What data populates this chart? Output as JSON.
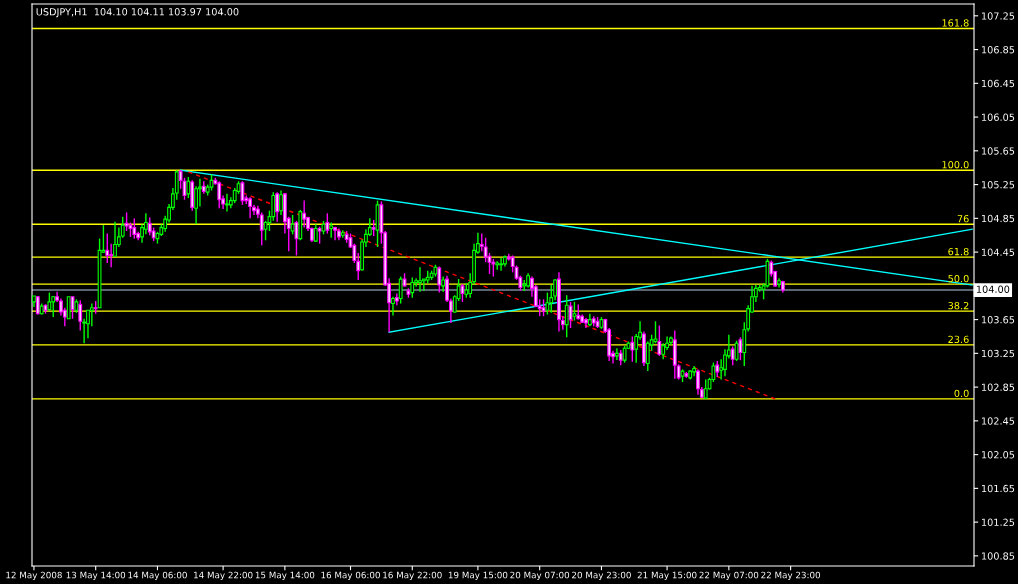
{
  "chart_data": {
    "type": "candlestick",
    "title": "USDJPY,H1  104.10 104.11 103.97 104.00",
    "categories": [
      "12 May 2008",
      null,
      null,
      null,
      null,
      null,
      null,
      null,
      null,
      null,
      null,
      null,
      null,
      null,
      null,
      null,
      "13 May 14:00",
      null,
      null,
      null,
      null,
      null,
      null,
      null,
      null,
      null,
      null,
      null,
      null,
      null,
      null,
      null,
      "14 May 06:00",
      null,
      null,
      null,
      null,
      null,
      null,
      null,
      null,
      null,
      null,
      null,
      null,
      null,
      null,
      null,
      null,
      "14 May 22:00",
      null,
      null,
      null,
      null,
      null,
      null,
      null,
      null,
      null,
      null,
      null,
      null,
      null,
      null,
      null,
      "15 May 14:00",
      null,
      null,
      null,
      null,
      null,
      null,
      null,
      null,
      null,
      null,
      null,
      null,
      null,
      null,
      null,
      null,
      "16 May 06:00",
      null,
      null,
      null,
      null,
      null,
      null,
      null,
      null,
      null,
      null,
      null,
      null,
      null,
      null,
      null,
      "16 May 22:00",
      null,
      null,
      null,
      null,
      null,
      null,
      null,
      null,
      null,
      null,
      null,
      null,
      null,
      null,
      null,
      null,
      "19 May 15:00",
      null,
      null,
      null,
      null,
      null,
      null,
      null,
      null,
      null,
      null,
      null,
      null,
      null,
      null,
      null,
      "20 May 07:00",
      null,
      null,
      null,
      null,
      null,
      null,
      null,
      null,
      null,
      null,
      null,
      null,
      null,
      null,
      null,
      "20 May 23:00",
      null,
      null,
      null,
      null,
      null,
      null,
      null,
      null,
      null,
      null,
      null,
      null,
      null,
      null,
      null,
      null,
      "21 May 15:00",
      null,
      null,
      null,
      null,
      null,
      null,
      null,
      null,
      null,
      null,
      null,
      null,
      null,
      null,
      null,
      "22 May 07:00",
      null,
      null,
      null,
      null,
      null,
      null,
      null,
      null,
      null,
      null,
      null,
      null,
      null,
      null,
      null,
      "22 May 23:00",
      null,
      null,
      null,
      null,
      null,
      null,
      null,
      null,
      null,
      null,
      null,
      null,
      null,
      null,
      null,
      null,
      null,
      null,
      null,
      null,
      null,
      null,
      null,
      null,
      null,
      null,
      null,
      null,
      null,
      null,
      null,
      null,
      null,
      null,
      null,
      null,
      null,
      null,
      null,
      null,
      null,
      null,
      null,
      null,
      null,
      null,
      null
    ],
    "ohlc": [
      [
        103.86,
        103.93,
        103.8,
        103.93
      ],
      [
        103.92,
        103.93,
        103.71,
        103.72
      ],
      [
        103.72,
        103.84,
        103.71,
        103.81
      ],
      [
        103.82,
        103.83,
        103.72,
        103.76
      ],
      [
        103.77,
        103.97,
        103.75,
        103.86
      ],
      [
        103.86,
        103.93,
        103.68,
        103.92
      ],
      [
        103.92,
        103.98,
        103.86,
        103.88
      ],
      [
        103.87,
        103.9,
        103.7,
        103.74
      ],
      [
        103.76,
        103.79,
        103.57,
        103.68
      ],
      [
        103.66,
        103.92,
        103.66,
        103.92
      ],
      [
        103.92,
        103.92,
        103.66,
        103.77
      ],
      [
        103.76,
        103.89,
        103.73,
        103.86
      ],
      [
        103.83,
        103.88,
        103.52,
        103.63
      ],
      [
        103.61,
        103.66,
        103.37,
        103.62
      ],
      [
        103.6,
        103.76,
        103.43,
        103.76
      ],
      [
        103.76,
        103.84,
        103.57,
        103.79
      ],
      [
        103.79,
        103.87,
        103.72,
        103.78
      ],
      [
        103.79,
        104.61,
        103.79,
        104.47
      ],
      [
        104.45,
        104.77,
        104.44,
        104.47
      ],
      [
        104.47,
        104.67,
        104.32,
        104.41
      ],
      [
        104.42,
        104.55,
        104.27,
        104.41
      ],
      [
        104.4,
        104.81,
        104.4,
        104.54
      ],
      [
        104.54,
        104.74,
        104.51,
        104.63
      ],
      [
        104.64,
        104.87,
        104.62,
        104.77
      ],
      [
        104.79,
        104.92,
        104.7,
        104.76
      ],
      [
        104.77,
        104.8,
        104.63,
        104.73
      ],
      [
        104.74,
        104.85,
        104.61,
        104.66
      ],
      [
        104.67,
        104.69,
        104.59,
        104.62
      ],
      [
        104.63,
        104.78,
        104.56,
        104.74
      ],
      [
        104.72,
        104.91,
        104.66,
        104.8
      ],
      [
        104.79,
        104.86,
        104.65,
        104.69
      ],
      [
        104.7,
        104.74,
        104.58,
        104.62
      ],
      [
        104.61,
        104.69,
        104.55,
        104.67
      ],
      [
        104.66,
        104.78,
        104.64,
        104.74
      ],
      [
        104.73,
        104.88,
        104.69,
        104.84
      ],
      [
        104.83,
        105.02,
        104.8,
        104.98
      ],
      [
        104.98,
        105.21,
        104.95,
        105.14
      ],
      [
        105.15,
        105.42,
        105.07,
        105.4
      ],
      [
        105.41,
        105.42,
        105.2,
        105.3
      ],
      [
        105.29,
        105.33,
        105.07,
        105.12
      ],
      [
        105.14,
        105.34,
        105.09,
        105.29
      ],
      [
        105.28,
        105.3,
        104.94,
        104.98
      ],
      [
        104.97,
        105.23,
        104.78,
        105.2
      ],
      [
        105.2,
        105.32,
        104.99,
        105.22
      ],
      [
        105.23,
        105.29,
        105.14,
        105.17
      ],
      [
        105.16,
        105.25,
        105.12,
        105.22
      ],
      [
        105.22,
        105.37,
        105.18,
        105.3
      ],
      [
        105.3,
        105.33,
        105.25,
        105.26
      ],
      [
        105.27,
        105.29,
        104.97,
        105.07
      ],
      [
        105.08,
        105.12,
        104.96,
        105.02
      ],
      [
        105.01,
        105.14,
        104.93,
        105.02
      ],
      [
        105.01,
        105.1,
        104.97,
        105.06
      ],
      [
        105.06,
        105.21,
        105.03,
        105.18
      ],
      [
        105.17,
        105.29,
        105.14,
        105.26
      ],
      [
        105.27,
        105.29,
        105.01,
        105.06
      ],
      [
        105.09,
        105.12,
        105.02,
        105.06
      ],
      [
        105.08,
        105.1,
        104.85,
        104.99
      ],
      [
        104.98,
        105.01,
        104.89,
        104.94
      ],
      [
        104.96,
        105.0,
        104.85,
        104.9
      ],
      [
        104.89,
        104.92,
        104.53,
        104.71
      ],
      [
        104.72,
        104.82,
        104.59,
        104.8
      ],
      [
        104.8,
        104.94,
        104.7,
        104.87
      ],
      [
        104.87,
        105.16,
        104.82,
        105.12
      ],
      [
        105.14,
        105.16,
        104.81,
        104.93
      ],
      [
        104.94,
        105.18,
        104.89,
        105.13
      ],
      [
        105.14,
        105.15,
        104.67,
        104.81
      ],
      [
        104.85,
        104.87,
        104.46,
        104.73
      ],
      [
        104.7,
        104.89,
        104.66,
        104.78
      ],
      [
        104.8,
        104.82,
        104.41,
        104.61
      ],
      [
        104.61,
        104.95,
        104.59,
        104.93
      ],
      [
        104.91,
        105.06,
        104.74,
        104.84
      ],
      [
        104.86,
        104.87,
        104.7,
        104.73
      ],
      [
        104.73,
        104.74,
        104.57,
        104.59
      ],
      [
        104.58,
        104.78,
        104.57,
        104.73
      ],
      [
        104.73,
        104.75,
        104.55,
        104.7
      ],
      [
        104.7,
        104.82,
        104.66,
        104.78
      ],
      [
        104.8,
        104.91,
        104.67,
        104.71
      ],
      [
        104.73,
        104.8,
        104.62,
        104.76
      ],
      [
        104.74,
        104.75,
        104.59,
        104.71
      ],
      [
        104.7,
        104.73,
        104.59,
        104.63
      ],
      [
        104.65,
        104.71,
        104.62,
        104.68
      ],
      [
        104.66,
        104.7,
        104.56,
        104.6
      ],
      [
        104.62,
        104.67,
        104.5,
        104.51
      ],
      [
        104.53,
        104.55,
        104.32,
        104.35
      ],
      [
        104.34,
        104.44,
        104.12,
        104.23
      ],
      [
        104.24,
        104.6,
        104.23,
        104.57
      ],
      [
        104.57,
        104.72,
        104.51,
        104.66
      ],
      [
        104.66,
        104.85,
        104.64,
        104.74
      ],
      [
        104.74,
        104.83,
        104.64,
        104.72
      ],
      [
        104.71,
        105.06,
        104.51,
        105.01
      ],
      [
        105.01,
        105.05,
        104.55,
        104.68
      ],
      [
        104.68,
        104.7,
        104.05,
        104.06
      ],
      [
        104.08,
        104.14,
        103.5,
        103.85
      ],
      [
        103.84,
        103.92,
        103.7,
        103.9
      ],
      [
        103.91,
        103.96,
        103.82,
        103.87
      ],
      [
        103.9,
        104.16,
        103.84,
        104.13
      ],
      [
        104.13,
        104.2,
        104.04,
        104.05
      ],
      [
        103.99,
        104.02,
        103.91,
        103.95
      ],
      [
        103.97,
        104.15,
        103.91,
        104.09
      ],
      [
        104.09,
        104.14,
        104.04,
        104.11
      ],
      [
        104.09,
        104.27,
        103.98,
        104.11
      ],
      [
        104.11,
        104.13,
        103.99,
        104.13
      ],
      [
        104.12,
        104.23,
        104.08,
        104.15
      ],
      [
        104.15,
        104.23,
        104.12,
        104.2
      ],
      [
        104.19,
        104.3,
        104.16,
        104.27
      ],
      [
        104.26,
        104.28,
        103.97,
        104.06
      ],
      [
        104.05,
        104.16,
        103.98,
        104.12
      ],
      [
        104.13,
        104.17,
        103.86,
        103.88
      ],
      [
        103.87,
        103.9,
        103.61,
        103.75
      ],
      [
        103.74,
        103.94,
        103.73,
        103.92
      ],
      [
        103.9,
        104.13,
        103.87,
        104.05
      ],
      [
        104.05,
        104.07,
        103.86,
        103.96
      ],
      [
        103.95,
        104.08,
        103.91,
        104.0
      ],
      [
        103.96,
        104.2,
        103.91,
        104.09
      ],
      [
        104.1,
        104.55,
        104.07,
        104.47
      ],
      [
        104.45,
        104.68,
        104.43,
        104.55
      ],
      [
        104.54,
        104.67,
        104.46,
        104.52
      ],
      [
        104.51,
        104.62,
        104.33,
        104.39
      ],
      [
        104.4,
        104.44,
        104.19,
        104.33
      ],
      [
        104.33,
        104.37,
        104.16,
        104.31
      ],
      [
        104.3,
        104.34,
        104.24,
        104.32
      ],
      [
        104.3,
        104.38,
        104.23,
        104.31
      ],
      [
        104.31,
        104.41,
        104.28,
        104.39
      ],
      [
        104.39,
        104.43,
        104.35,
        104.37
      ],
      [
        104.39,
        104.41,
        104.21,
        104.28
      ],
      [
        104.27,
        104.29,
        104.12,
        104.14
      ],
      [
        104.15,
        104.17,
        103.99,
        104.03
      ],
      [
        104.05,
        104.12,
        103.99,
        104.07
      ],
      [
        104.05,
        104.2,
        104.03,
        104.17
      ],
      [
        104.14,
        104.16,
        103.92,
        104.02
      ],
      [
        104.04,
        104.06,
        103.8,
        103.81
      ],
      [
        103.81,
        103.89,
        103.69,
        103.78
      ],
      [
        103.79,
        103.89,
        103.69,
        103.75
      ],
      [
        103.76,
        103.97,
        103.71,
        103.85
      ],
      [
        103.85,
        104.06,
        103.73,
        103.91
      ],
      [
        103.93,
        104.13,
        103.88,
        104.12
      ],
      [
        104.13,
        104.21,
        103.51,
        103.65
      ],
      [
        103.64,
        103.69,
        103.53,
        103.59
      ],
      [
        103.59,
        103.94,
        103.44,
        103.82
      ],
      [
        103.81,
        103.86,
        103.55,
        103.65
      ],
      [
        103.69,
        103.86,
        103.64,
        103.72
      ],
      [
        103.7,
        103.83,
        103.65,
        103.66
      ],
      [
        103.69,
        103.71,
        103.61,
        103.62
      ],
      [
        103.65,
        103.67,
        103.55,
        103.61
      ],
      [
        103.59,
        103.72,
        103.57,
        103.65
      ],
      [
        103.66,
        103.69,
        103.57,
        103.61
      ],
      [
        103.63,
        103.68,
        103.55,
        103.57
      ],
      [
        103.56,
        103.68,
        103.54,
        103.65
      ],
      [
        103.65,
        103.66,
        103.49,
        103.51
      ],
      [
        103.53,
        103.55,
        103.16,
        103.22
      ],
      [
        103.25,
        103.28,
        103.13,
        103.21
      ],
      [
        103.22,
        103.31,
        103.17,
        103.25
      ],
      [
        103.25,
        103.29,
        103.11,
        103.17
      ],
      [
        103.17,
        103.34,
        103.14,
        103.31
      ],
      [
        103.31,
        103.39,
        103.3,
        103.37
      ],
      [
        103.38,
        103.45,
        103.15,
        103.29
      ],
      [
        103.3,
        103.48,
        103.14,
        103.45
      ],
      [
        103.44,
        103.63,
        103.41,
        103.5
      ],
      [
        103.48,
        103.51,
        103.1,
        103.14
      ],
      [
        103.13,
        103.39,
        103.04,
        103.37
      ],
      [
        103.35,
        103.47,
        103.28,
        103.41
      ],
      [
        103.39,
        103.63,
        103.37,
        103.42
      ],
      [
        103.39,
        103.58,
        103.22,
        103.24
      ],
      [
        103.24,
        103.37,
        103.18,
        103.34
      ],
      [
        103.32,
        103.45,
        103.29,
        103.37
      ],
      [
        103.38,
        103.45,
        103.35,
        103.43
      ],
      [
        103.41,
        103.52,
        102.95,
        103.11
      ],
      [
        103.1,
        103.12,
        102.94,
        102.96
      ],
      [
        102.98,
        103.06,
        102.91,
        103.04
      ],
      [
        103.01,
        103.03,
        102.96,
        102.98
      ],
      [
        102.96,
        103.05,
        102.94,
        103.04
      ],
      [
        103.03,
        103.1,
        102.98,
        103.07
      ],
      [
        103.04,
        103.06,
        102.76,
        102.83
      ],
      [
        102.82,
        102.85,
        102.72,
        102.73
      ],
      [
        102.72,
        102.94,
        102.71,
        102.83
      ],
      [
        102.83,
        102.96,
        102.82,
        102.94
      ],
      [
        102.94,
        103.14,
        102.91,
        103.1
      ],
      [
        103.11,
        103.16,
        102.97,
        103.03
      ],
      [
        103.05,
        103.18,
        102.94,
        103.08
      ],
      [
        103.06,
        103.3,
        102.98,
        103.23
      ],
      [
        103.22,
        103.47,
        103.19,
        103.29
      ],
      [
        103.3,
        103.33,
        103.11,
        103.18
      ],
      [
        103.18,
        103.4,
        103.16,
        103.37
      ],
      [
        103.41,
        103.44,
        103.17,
        103.26
      ],
      [
        103.26,
        103.62,
        103.1,
        103.53
      ],
      [
        103.54,
        103.82,
        103.51,
        103.78
      ],
      [
        103.74,
        104.05,
        103.73,
        103.92
      ],
      [
        103.92,
        104.06,
        103.86,
        104.02
      ],
      [
        104.01,
        104.06,
        103.98,
        104.03
      ],
      [
        104.01,
        104.08,
        103.89,
        104.05
      ],
      [
        104.05,
        104.37,
        104.03,
        104.34
      ],
      [
        104.33,
        104.35,
        104.16,
        104.19
      ],
      [
        104.22,
        104.23,
        104.04,
        104.05
      ],
      [
        104.07,
        104.14,
        104.03,
        104.11
      ],
      [
        104.1,
        104.11,
        103.97,
        104.0
      ],
      null,
      null,
      null,
      null,
      null,
      null,
      null,
      null,
      null,
      null,
      null,
      null,
      null,
      null,
      null,
      null,
      null,
      null,
      null,
      null,
      null,
      null,
      null,
      null,
      null,
      null,
      null,
      null,
      null,
      null,
      null,
      null,
      null,
      null,
      null,
      null,
      null,
      null,
      null,
      null,
      null,
      null,
      null,
      null,
      null,
      null,
      null,
      null,
      null
    ],
    "series": [
      {
        "type": "line",
        "color": "#00ffff",
        "line_style": "solid",
        "values": [
          null,
          null,
          null,
          null,
          null,
          null,
          null,
          null,
          null,
          null,
          null,
          null,
          null,
          null,
          null,
          null,
          null,
          null,
          null,
          null,
          null,
          null,
          null,
          null,
          null,
          null,
          null,
          null,
          null,
          null,
          null,
          null,
          null,
          null,
          null,
          null,
          null,
          null,
          105.42,
          null,
          null,
          null,
          null,
          null,
          null,
          null,
          null,
          null,
          null,
          null,
          null,
          null,
          null,
          null,
          null,
          null,
          null,
          null,
          null,
          null,
          null,
          null,
          null,
          null,
          null,
          null,
          null,
          null,
          null,
          null,
          null,
          null,
          null,
          null,
          null,
          null,
          null,
          null,
          null,
          null,
          null,
          null,
          null,
          null,
          null,
          null,
          null,
          null,
          null,
          null,
          null,
          null,
          null,
          null,
          null,
          null,
          null,
          null,
          null,
          null,
          null,
          null,
          null,
          null,
          null,
          null,
          null,
          null,
          null,
          null,
          null,
          null,
          null,
          null,
          null,
          null,
          null,
          null,
          null,
          null,
          null,
          null,
          null,
          null,
          null,
          null,
          null,
          null,
          null,
          null,
          null,
          null,
          null,
          null,
          null,
          null,
          null,
          null,
          null,
          null,
          null,
          null,
          null,
          null,
          null,
          null,
          null,
          null,
          null,
          null,
          null,
          null,
          null,
          null,
          null,
          null,
          null,
          null,
          null,
          null,
          null,
          null,
          null,
          null,
          null,
          null,
          null,
          null,
          null,
          null,
          null,
          null,
          null,
          null,
          null,
          null,
          null,
          null,
          null,
          null,
          null,
          null,
          null,
          null,
          null,
          null,
          null,
          null,
          null,
          null,
          null,
          null,
          null,
          null,
          null,
          null,
          null,
          null,
          null,
          null,
          null,
          null,
          null,
          null,
          null,
          null,
          null,
          null,
          null,
          null,
          null,
          null,
          null,
          null,
          null,
          null,
          null,
          null,
          null,
          null,
          null,
          null,
          null,
          null,
          null,
          null,
          null,
          null,
          null,
          null,
          null,
          null,
          null,
          null,
          null,
          null,
          null,
          null,
          null,
          null,
          null,
          null,
          null,
          104.06
        ]
      },
      {
        "type": "line",
        "color": "#00ffff",
        "line_style": "solid",
        "values": [
          null,
          null,
          null,
          null,
          null,
          null,
          null,
          null,
          null,
          null,
          null,
          null,
          null,
          null,
          null,
          null,
          null,
          null,
          null,
          null,
          null,
          null,
          null,
          null,
          null,
          null,
          null,
          null,
          null,
          null,
          null,
          null,
          null,
          null,
          null,
          null,
          null,
          null,
          null,
          null,
          null,
          null,
          null,
          null,
          null,
          null,
          null,
          null,
          null,
          null,
          null,
          null,
          null,
          null,
          null,
          null,
          null,
          null,
          null,
          null,
          null,
          null,
          null,
          null,
          null,
          null,
          null,
          null,
          null,
          null,
          null,
          null,
          null,
          null,
          null,
          null,
          null,
          null,
          null,
          null,
          null,
          null,
          null,
          null,
          null,
          null,
          null,
          null,
          null,
          null,
          null,
          null,
          103.5,
          null,
          null,
          null,
          null,
          null,
          null,
          null,
          null,
          null,
          null,
          null,
          null,
          null,
          null,
          null,
          null,
          null,
          null,
          null,
          null,
          null,
          null,
          null,
          null,
          null,
          null,
          null,
          null,
          null,
          null,
          null,
          null,
          null,
          null,
          null,
          null,
          null,
          null,
          null,
          null,
          null,
          null,
          null,
          null,
          null,
          null,
          null,
          null,
          null,
          null,
          null,
          null,
          null,
          null,
          null,
          null,
          null,
          null,
          null,
          null,
          null,
          null,
          null,
          null,
          null,
          null,
          null,
          null,
          null,
          null,
          null,
          null,
          null,
          null,
          null,
          null,
          null,
          null,
          null,
          null,
          null,
          null,
          null,
          null,
          null,
          null,
          null,
          null,
          null,
          null,
          null,
          null,
          null,
          null,
          null,
          null,
          null,
          null,
          null,
          null,
          null,
          null,
          null,
          null,
          null,
          null,
          null,
          null,
          null,
          null,
          null,
          null,
          null,
          null,
          null,
          null,
          null,
          null,
          null,
          null,
          null,
          null,
          null,
          null,
          null,
          null,
          null,
          null,
          null,
          null,
          null,
          null,
          null,
          null,
          null,
          null,
          null,
          null,
          null,
          null,
          null,
          null,
          null,
          null,
          null,
          null,
          null,
          null,
          null,
          null,
          104.72
        ]
      },
      {
        "type": "line",
        "color": "#ff0000",
        "line_style": "dashed",
        "values": [
          null,
          null,
          null,
          null,
          null,
          null,
          null,
          null,
          null,
          null,
          null,
          null,
          null,
          null,
          null,
          null,
          null,
          null,
          null,
          null,
          null,
          null,
          null,
          null,
          null,
          null,
          null,
          null,
          null,
          null,
          null,
          null,
          null,
          null,
          null,
          null,
          null,
          null,
          null,
          null,
          105.4,
          null,
          null,
          null,
          null,
          null,
          null,
          null,
          null,
          null,
          null,
          null,
          null,
          null,
          null,
          null,
          null,
          null,
          null,
          null,
          null,
          null,
          null,
          null,
          null,
          null,
          null,
          null,
          null,
          null,
          null,
          null,
          null,
          null,
          null,
          null,
          null,
          null,
          null,
          null,
          null,
          null,
          null,
          null,
          null,
          null,
          null,
          null,
          null,
          null,
          null,
          null,
          null,
          null,
          null,
          null,
          null,
          null,
          null,
          null,
          null,
          null,
          null,
          null,
          null,
          null,
          null,
          null,
          null,
          null,
          null,
          null,
          null,
          null,
          null,
          null,
          null,
          null,
          null,
          null,
          null,
          null,
          null,
          null,
          null,
          null,
          null,
          null,
          null,
          null,
          null,
          null,
          null,
          null,
          null,
          null,
          null,
          null,
          null,
          null,
          null,
          null,
          null,
          null,
          null,
          null,
          null,
          null,
          null,
          null,
          null,
          null,
          null,
          null,
          null,
          null,
          null,
          null,
          null,
          null,
          null,
          null,
          null,
          null,
          null,
          null,
          null,
          null,
          null,
          null,
          null,
          null,
          null,
          null,
          null,
          null,
          null,
          null,
          null,
          null,
          null,
          null,
          null,
          null,
          null,
          null,
          null,
          null,
          null,
          null,
          null,
          null,
          102.71,
          null,
          null,
          null,
          null,
          null,
          null,
          null,
          null,
          null,
          null,
          null,
          null,
          null,
          null,
          null,
          null,
          null,
          null,
          null,
          null,
          null,
          null,
          null,
          null,
          null,
          null,
          null,
          null,
          null,
          null,
          null,
          null,
          null,
          null,
          null,
          null,
          null,
          null,
          null,
          null,
          null,
          null,
          null,
          null,
          null,
          null,
          null,
          null,
          null,
          null,
          null
        ]
      }
    ],
    "ref_lines": [
      {
        "axis": "y",
        "value": 107.1,
        "color": "#ffff00"
      },
      {
        "axis": "y",
        "value": 105.42,
        "color": "#ffff00"
      },
      {
        "axis": "y",
        "value": 104.78,
        "color": "#ffff00"
      },
      {
        "axis": "y",
        "value": 104.39,
        "color": "#ffff00"
      },
      {
        "axis": "y",
        "value": 104.07,
        "color": "#ffff00"
      },
      {
        "axis": "y",
        "value": 103.75,
        "color": "#ffff00"
      },
      {
        "axis": "y",
        "value": 103.35,
        "color": "#ffff00"
      },
      {
        "axis": "y",
        "value": 102.71,
        "color": "#ffff00"
      },
      {
        "axis": "y",
        "value": 104.0,
        "label": "104.00",
        "color": "#778899"
      }
    ],
    "annotations": [
      {
        "text": "161.8",
        "y": 107.1
      },
      {
        "text": "100.0",
        "y": 105.42
      },
      {
        "text": "76",
        "y": 104.78
      },
      {
        "text": "61.8",
        "y": 104.39
      },
      {
        "text": "50.0",
        "y": 104.07
      },
      {
        "text": "38.2",
        "y": 103.75
      },
      {
        "text": "23.6",
        "y": 103.35
      },
      {
        "text": "0.0",
        "y": 102.71
      }
    ],
    "ylim": [
      100.73,
      107.39
    ],
    "yticks": [
      107.25,
      106.85,
      106.45,
      106.05,
      105.65,
      105.25,
      104.85,
      104.45,
      103.65,
      103.25,
      102.85,
      102.45,
      102.05,
      101.65,
      101.25,
      100.85
    ]
  }
}
